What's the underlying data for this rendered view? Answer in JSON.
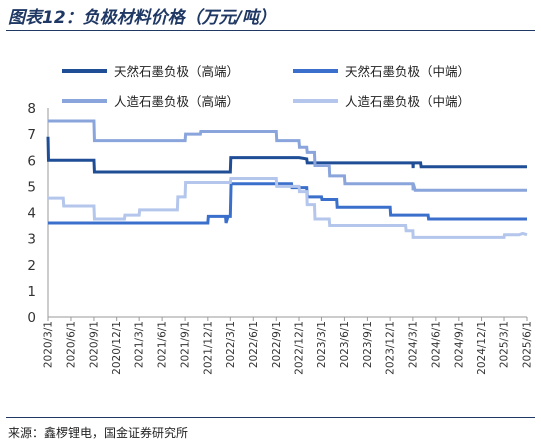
{
  "figure": {
    "title": "图表12：负极材料价格（万元/吨）",
    "source": "来源：鑫椤锂电，国金证券研究所"
  },
  "chart_data": {
    "type": "line",
    "title": "图表12：负极材料价格（万元/吨）",
    "xlabel": "",
    "ylabel": "",
    "ylim": [
      0,
      8
    ],
    "yticks": [
      "0",
      "1",
      "2",
      "3",
      "4",
      "5",
      "6",
      "7",
      "8"
    ],
    "xlim": [
      "2020/3/1",
      "2025/6/1"
    ],
    "xticks": [
      "2020/3/1",
      "2020/6/1",
      "2020/9/1",
      "2020/12/1",
      "2021/3/1",
      "2021/6/1",
      "2021/9/1",
      "2021/12/1",
      "2022/3/1",
      "2022/6/1",
      "2022/9/1",
      "2022/12/1",
      "2023/3/1",
      "2023/6/1",
      "2023/9/1",
      "2023/12/1",
      "2024/3/1",
      "2024/6/1",
      "2024/9/1",
      "2024/12/1",
      "2025/3/1",
      "2025/6/1"
    ],
    "grid": false,
    "legend_position": "top",
    "series": [
      {
        "name": "天然石墨负极（高端）",
        "color": "#1f4e96",
        "points": [
          [
            "2020/3/1",
            6.9
          ],
          [
            "2020/3/3",
            6.0
          ],
          [
            "2020/9/1",
            6.0
          ],
          [
            "2020/9/3",
            5.55
          ],
          [
            "2022/3/1",
            5.55
          ],
          [
            "2022/3/3",
            6.1
          ],
          [
            "2022/12/1",
            6.1
          ],
          [
            "2023/1/1",
            6.05
          ],
          [
            "2023/1/3",
            5.9
          ],
          [
            "2024/3/1",
            5.9
          ],
          [
            "2024/3/2",
            5.7
          ],
          [
            "2024/3/3",
            5.9
          ],
          [
            "2024/4/1",
            5.9
          ],
          [
            "2024/4/3",
            5.75
          ],
          [
            "2025/6/1",
            5.75
          ]
        ]
      },
      {
        "name": "天然石墨负极（中端）",
        "color": "#3b6fcc",
        "points": [
          [
            "2020/3/1",
            3.6
          ],
          [
            "2021/12/1",
            3.6
          ],
          [
            "2021/12/3",
            3.85
          ],
          [
            "2022/2/10",
            3.85
          ],
          [
            "2022/2/12",
            3.6
          ],
          [
            "2022/2/20",
            3.85
          ],
          [
            "2022/3/1",
            3.85
          ],
          [
            "2022/3/4",
            5.1
          ],
          [
            "2022/11/1",
            5.1
          ],
          [
            "2022/11/3",
            4.95
          ],
          [
            "2023/1/1",
            4.95
          ],
          [
            "2023/1/3",
            4.6
          ],
          [
            "2023/3/1",
            4.6
          ],
          [
            "2023/3/3",
            4.5
          ],
          [
            "2023/5/1",
            4.5
          ],
          [
            "2023/5/3",
            4.2
          ],
          [
            "2023/12/1",
            4.2
          ],
          [
            "2023/12/3",
            3.9
          ],
          [
            "2024/5/1",
            3.9
          ],
          [
            "2024/5/3",
            3.75
          ],
          [
            "2025/6/1",
            3.75
          ]
        ]
      },
      {
        "name": "人造石墨负极（高端）",
        "color": "#8aa4dc",
        "points": [
          [
            "2020/3/1",
            7.5
          ],
          [
            "2020/9/1",
            7.5
          ],
          [
            "2020/9/3",
            6.75
          ],
          [
            "2021/9/1",
            6.75
          ],
          [
            "2021/9/3",
            7.0
          ],
          [
            "2021/11/1",
            7.0
          ],
          [
            "2021/11/3",
            7.1
          ],
          [
            "2022/9/1",
            7.1
          ],
          [
            "2022/9/3",
            6.75
          ],
          [
            "2022/12/1",
            6.75
          ],
          [
            "2022/12/3",
            6.5
          ],
          [
            "2023/1/1",
            6.5
          ],
          [
            "2023/1/3",
            6.3
          ],
          [
            "2023/2/1",
            6.3
          ],
          [
            "2023/2/3",
            5.8
          ],
          [
            "2023/4/1",
            5.8
          ],
          [
            "2023/4/3",
            5.4
          ],
          [
            "2023/6/1",
            5.4
          ],
          [
            "2023/6/3",
            5.1
          ],
          [
            "2024/3/1",
            5.1
          ],
          [
            "2024/3/2",
            4.85
          ],
          [
            "2024/3/3",
            5.1
          ],
          [
            "2024/3/10",
            4.85
          ],
          [
            "2025/6/1",
            4.85
          ]
        ]
      },
      {
        "name": "人造石墨负极（中端）",
        "color": "#b4c6ec",
        "points": [
          [
            "2020/3/1",
            4.55
          ],
          [
            "2020/5/1",
            4.55
          ],
          [
            "2020/5/3",
            4.25
          ],
          [
            "2020/9/1",
            4.25
          ],
          [
            "2020/9/3",
            3.75
          ],
          [
            "2021/1/1",
            3.75
          ],
          [
            "2021/1/3",
            3.9
          ],
          [
            "2021/3/1",
            3.9
          ],
          [
            "2021/3/3",
            4.1
          ],
          [
            "2021/8/1",
            4.1
          ],
          [
            "2021/8/3",
            4.6
          ],
          [
            "2021/9/1",
            4.6
          ],
          [
            "2021/9/3",
            5.15
          ],
          [
            "2022/3/1",
            5.15
          ],
          [
            "2022/3/3",
            5.3
          ],
          [
            "2022/9/1",
            5.3
          ],
          [
            "2022/9/3",
            5.0
          ],
          [
            "2022/12/1",
            5.0
          ],
          [
            "2022/12/3",
            4.8
          ],
          [
            "2023/1/1",
            4.8
          ],
          [
            "2023/1/3",
            4.3
          ],
          [
            "2023/2/1",
            4.3
          ],
          [
            "2023/2/3",
            3.75
          ],
          [
            "2023/4/1",
            3.75
          ],
          [
            "2023/4/3",
            3.5
          ],
          [
            "2024/2/1",
            3.5
          ],
          [
            "2024/2/3",
            3.3
          ],
          [
            "2024/3/1",
            3.3
          ],
          [
            "2024/3/2",
            3.05
          ],
          [
            "2025/3/1",
            3.05
          ],
          [
            "2025/3/3",
            3.15
          ],
          [
            "2025/5/1",
            3.15
          ],
          [
            "2025/5/15",
            3.2
          ],
          [
            "2025/6/1",
            3.15
          ]
        ]
      }
    ]
  }
}
